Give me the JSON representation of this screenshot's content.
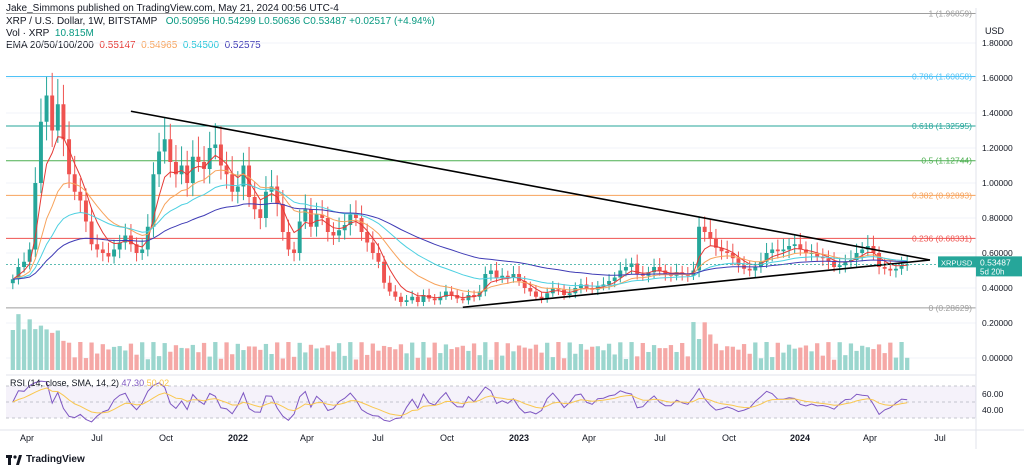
{
  "header": {
    "publisher": "Jake_Simmons published on TradingView.com, May 21, 2024 00:56 UTC-4",
    "symbol_line": "XRP / U.S. Dollar, 1W, BITSTAMP",
    "ohlc": "O0.50956 H0.54299 L0.50636 C0.53487 +0.02517 (+4.94%)",
    "vol_label": "Vol · XRP",
    "vol_value": "10.815M",
    "ema_label": "EMA 20/50/100/200",
    "ema_values": [
      "0.55147",
      "0.54965",
      "0.54500",
      "0.52575"
    ],
    "currency": "USD"
  },
  "colors": {
    "up": "#26a69a",
    "down": "#ef5350",
    "ema20": "#e53935",
    "ema50": "#f7a35c",
    "ema100": "#4dd0e1",
    "ema200": "#3f3bb5",
    "rsi": "#7e57c2",
    "rsi_sma": "#f9c74f",
    "trendline": "#000000"
  },
  "footer": {
    "logo_text": "TradingView"
  },
  "chart_data": {
    "type": "candlestick",
    "title": "XRP / U.S. Dollar, 1W, BITSTAMP",
    "ylabel": "USD",
    "ylim": [
      -0.08,
      2.0
    ],
    "price_ticks": [
      "1.80000",
      "1.60000",
      "1.40000",
      "1.20000",
      "1.00000",
      "0.80000",
      "0.60000",
      "0.40000",
      "0.20000",
      "0.00000"
    ],
    "x_ticks": [
      "Apr",
      "Jul",
      "Oct",
      "2022",
      "Apr",
      "Jul",
      "Oct",
      "2023",
      "Apr",
      "Jul",
      "Oct",
      "2024",
      "Apr",
      "Jul"
    ],
    "fib_levels": [
      {
        "ratio": "1",
        "value": 1.96859,
        "label": "1 (1.96859)",
        "color": "#9e9e9e"
      },
      {
        "ratio": "0.786",
        "value": 1.60858,
        "label": "0.786 (1.60858)",
        "color": "#4fc3f7"
      },
      {
        "ratio": "0.618",
        "value": 1.32595,
        "label": "0.618 (1.32595)",
        "color": "#26a69a"
      },
      {
        "ratio": "0.5",
        "value": 1.12744,
        "label": "0.5 (1.12744)",
        "color": "#4caf50"
      },
      {
        "ratio": "0.382",
        "value": 0.92893,
        "label": "0.382 (0.92893)",
        "color": "#f7a35c"
      },
      {
        "ratio": "0.236",
        "value": 0.68331,
        "label": "0.236 (0.68331)",
        "color": "#ef5350"
      },
      {
        "ratio": "0",
        "value": 0.28629,
        "label": "0 (0.28629)",
        "color": "#9e9e9e"
      }
    ],
    "last_price": {
      "symbol": "XRPUSD",
      "value": "0.53487",
      "countdown": "5d 20h"
    },
    "rsi": {
      "label": "RSI (14, close, SMA, 14, 2)",
      "value": "47.30",
      "sma_value": "50.02",
      "ticks": [
        "60.00",
        "40.00"
      ],
      "levels": [
        70,
        50,
        30
      ]
    },
    "series_closes": [
      0.45,
      0.52,
      0.55,
      0.62,
      1.0,
      1.35,
      1.5,
      1.3,
      1.45,
      1.25,
      1.05,
      0.95,
      0.9,
      0.78,
      0.65,
      0.62,
      0.6,
      0.58,
      0.62,
      0.66,
      0.7,
      0.65,
      0.6,
      0.62,
      0.75,
      1.05,
      1.18,
      1.25,
      1.12,
      1.05,
      1.1,
      1.0,
      1.15,
      1.12,
      1.08,
      1.2,
      1.22,
      1.1,
      1.05,
      0.95,
      0.98,
      1.1,
      0.92,
      0.85,
      0.8,
      0.95,
      0.98,
      0.88,
      0.72,
      0.62,
      0.6,
      0.78,
      0.85,
      0.75,
      0.82,
      0.8,
      0.72,
      0.7,
      0.73,
      0.76,
      0.82,
      0.8,
      0.72,
      0.66,
      0.6,
      0.55,
      0.43,
      0.38,
      0.35,
      0.32,
      0.33,
      0.35,
      0.32,
      0.36,
      0.34,
      0.33,
      0.35,
      0.38,
      0.36,
      0.34,
      0.33,
      0.36,
      0.35,
      0.38,
      0.48,
      0.5,
      0.46,
      0.47,
      0.46,
      0.48,
      0.44,
      0.4,
      0.38,
      0.35,
      0.34,
      0.37,
      0.4,
      0.39,
      0.36,
      0.37,
      0.4,
      0.42,
      0.4,
      0.39,
      0.41,
      0.42,
      0.44,
      0.46,
      0.5,
      0.52,
      0.54,
      0.48,
      0.47,
      0.49,
      0.52,
      0.5,
      0.48,
      0.47,
      0.49,
      0.48,
      0.47,
      0.5,
      0.75,
      0.72,
      0.68,
      0.63,
      0.61,
      0.6,
      0.57,
      0.53,
      0.51,
      0.5,
      0.52,
      0.55,
      0.6,
      0.62,
      0.61,
      0.62,
      0.64,
      0.65,
      0.62,
      0.6,
      0.6,
      0.58,
      0.57,
      0.55,
      0.52,
      0.53,
      0.55,
      0.56,
      0.6,
      0.62,
      0.64,
      0.6,
      0.52,
      0.51,
      0.5,
      0.51,
      0.53,
      0.535
    ]
  }
}
